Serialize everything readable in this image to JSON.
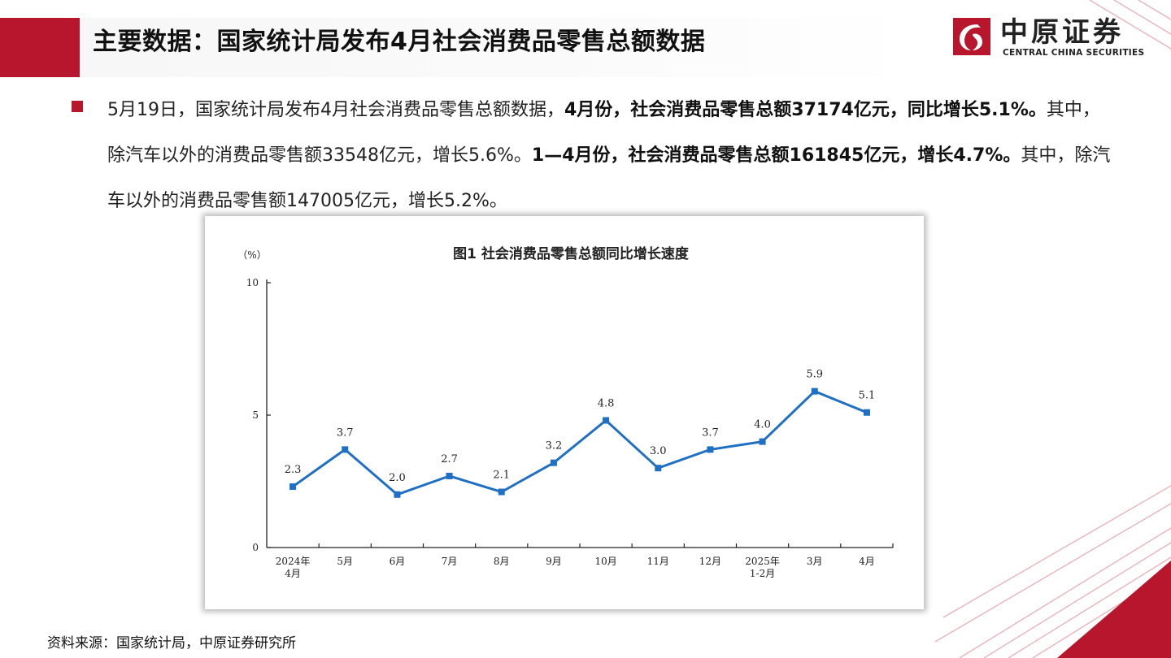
{
  "header": {
    "title": "主要数据：国家统计局发布4月社会消费品零售总额数据",
    "logo_cn": "中原证券",
    "logo_en": "CENTRAL CHINA SECURITIES"
  },
  "colors": {
    "accent": "#b8162c",
    "series": "#1f6fc5",
    "text": "#222222"
  },
  "bullet": {
    "icon": "square-bullet-icon",
    "p1": "5月19日，国家统计局发布4月社会消费品零售总额数据，",
    "b1": "4月份，社会消费品零售总额37174亿元，同比增长5.1%。",
    "p2": "其中，除汽车以外的消费品零售额33548亿元，增长5.6%。",
    "b2": "1—4月份，社会消费品零售总额161845亿元，增长4.7%。",
    "p3": "其中，除汽车以外的消费品零售额147005亿元，增长5.2%。"
  },
  "chart_data": {
    "type": "line",
    "title": "图1  社会消费品零售总额同比增长速度",
    "unit": "（%）",
    "categories": [
      "2024年|4月",
      "5月",
      "6月",
      "7月",
      "8月",
      "9月",
      "10月",
      "11月",
      "12月",
      "2025年|1-2月",
      "3月",
      "4月"
    ],
    "values": [
      2.3,
      3.7,
      2.0,
      2.7,
      2.1,
      3.2,
      4.8,
      3.0,
      3.7,
      4.0,
      5.9,
      5.1
    ],
    "data_labels": [
      "2.3",
      "3.7",
      "2.0",
      "2.7",
      "2.1",
      "3.2",
      "4.8",
      "3.0",
      "3.7",
      "4.0",
      "5.9",
      "5.1"
    ],
    "y_ticks": [
      "0",
      "5",
      "10"
    ],
    "ylim": [
      0,
      10
    ],
    "grid": false,
    "marker": "square"
  },
  "footer": {
    "source": "资料来源：国家统计局，中原证券研究所"
  }
}
